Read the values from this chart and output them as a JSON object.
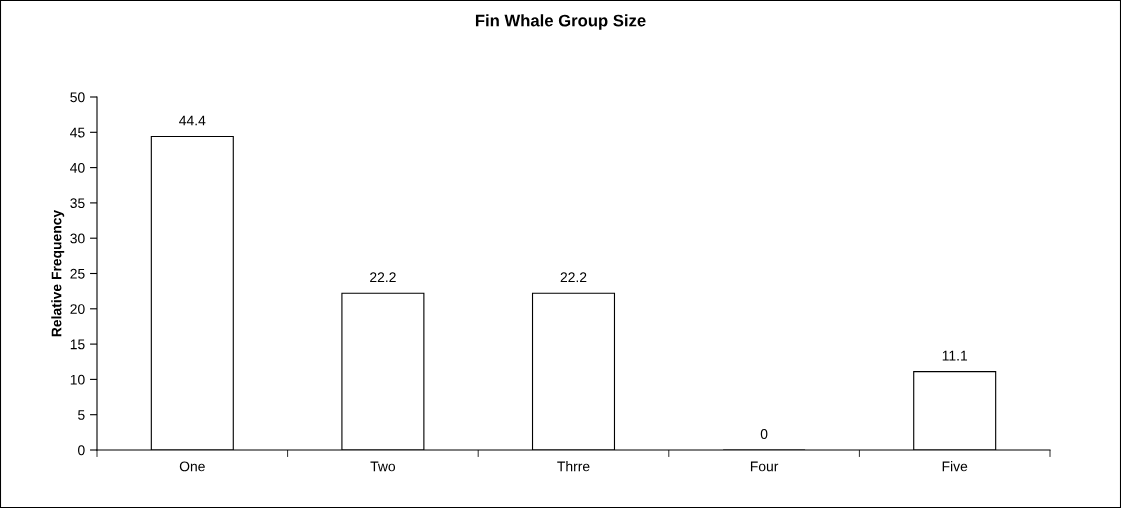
{
  "chart_data": {
    "type": "bar",
    "title": "Fin Whale Group Size",
    "ylabel": "Relative Frequency",
    "categories": [
      "One",
      "Two",
      "Thrre",
      "Four",
      "Five"
    ],
    "values": [
      44.4,
      22.2,
      22.2,
      0,
      11.1
    ],
    "color": "#ffffff",
    "ylim": [
      0,
      50
    ],
    "yticks": [
      0,
      5,
      10,
      15,
      20,
      25,
      30,
      35,
      40,
      45,
      50
    ],
    "data_labels": true,
    "grid": false,
    "legend": false
  }
}
